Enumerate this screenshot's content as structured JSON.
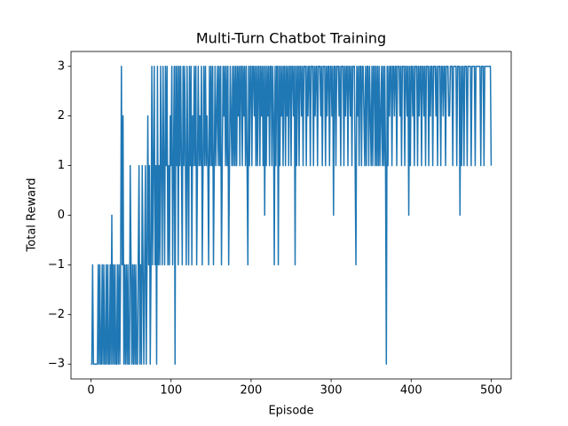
{
  "chart_data": {
    "type": "line",
    "title": "Multi-Turn Chatbot Training",
    "x_label": "Episode",
    "y_label": "Total Reward",
    "xlim": [
      -25,
      525
    ],
    "xticks": [
      0,
      100,
      200,
      300,
      400,
      500
    ],
    "ylim": [
      -3.3,
      3.3
    ],
    "yticks": [
      {
        "value": -3,
        "label": "−3"
      },
      {
        "value": -2,
        "label": "−2"
      },
      {
        "value": -1,
        "label": "−1"
      },
      0,
      1,
      2,
      3
    ],
    "series": [
      {
        "name": "Total Reward",
        "color": "#1f77b4",
        "values": [
          -3,
          -3,
          -1,
          -3,
          -3,
          -3,
          -3,
          -3,
          -3,
          -1,
          -3,
          -1,
          -3,
          -3,
          -1,
          -3,
          -1,
          -3,
          -3,
          -1,
          -3,
          -1,
          -3,
          -3,
          -1,
          -3,
          0,
          -3,
          -1,
          -3,
          -1,
          -3,
          -3,
          -1,
          -3,
          -1,
          -3,
          -1,
          3,
          -1,
          2,
          -3,
          -1,
          -3,
          -1,
          -3,
          -1,
          -3,
          -3,
          1,
          -1,
          -3,
          -1,
          -3,
          -1,
          -3,
          -1,
          -3,
          -3,
          -1,
          1,
          -3,
          -1,
          -3,
          1,
          -1,
          -3,
          -1,
          1,
          -3,
          -1,
          2,
          -1,
          1,
          -3,
          -1,
          3,
          -1,
          1,
          3,
          -1,
          1,
          -3,
          3,
          -1,
          1,
          -1,
          3,
          1,
          -1,
          3,
          1,
          -1,
          3,
          1,
          3,
          -1,
          1,
          -1,
          2,
          1,
          3,
          -1,
          1,
          3,
          -3,
          3,
          1,
          3,
          -1,
          3,
          1,
          3,
          1,
          -1,
          3,
          1,
          3,
          1,
          -1,
          3,
          1,
          -1,
          3,
          1,
          3,
          -1,
          2,
          1,
          3,
          1,
          3,
          -1,
          1,
          3,
          1,
          2,
          1,
          3,
          -1,
          1,
          3,
          1,
          3,
          1,
          2,
          1,
          -1,
          3,
          1,
          3,
          1,
          3,
          -1,
          1,
          3,
          1,
          2,
          3,
          1,
          3,
          1,
          3,
          -1,
          1,
          3,
          2,
          3,
          1,
          3,
          1,
          3,
          -1,
          1,
          3,
          2,
          1,
          3,
          1,
          3,
          1,
          3,
          1,
          3,
          2,
          3,
          1,
          3,
          3,
          1,
          3,
          2,
          3,
          1,
          3,
          1,
          -1,
          3,
          1,
          3,
          3,
          1,
          3,
          3,
          2,
          3,
          1,
          3,
          1,
          3,
          3,
          1,
          3,
          2,
          3,
          1,
          3,
          0,
          3,
          1,
          3,
          2,
          3,
          1,
          3,
          3,
          1,
          3,
          2,
          -1,
          3,
          1,
          3,
          3,
          -1,
          3,
          1,
          3,
          2,
          3,
          1,
          3,
          3,
          1,
          3,
          2,
          3,
          1,
          3,
          3,
          1,
          3,
          3,
          2,
          3,
          -1,
          3,
          1,
          3,
          3,
          1,
          3,
          3,
          2,
          3,
          1,
          3,
          3,
          3,
          1,
          3,
          2,
          3,
          3,
          1,
          3,
          3,
          3,
          1,
          3,
          2,
          3,
          3,
          1,
          3,
          3,
          3,
          2,
          3,
          1,
          3,
          3,
          3,
          1,
          3,
          2,
          3,
          3,
          1,
          3,
          3,
          2,
          3,
          0,
          3,
          3,
          1,
          3,
          3,
          3,
          2,
          3,
          1,
          3,
          3,
          3,
          1,
          3,
          2,
          3,
          3,
          1,
          3,
          3,
          2,
          3,
          1,
          3,
          3,
          3,
          1,
          -1,
          3,
          2,
          3,
          1,
          3,
          3,
          1,
          3,
          3,
          2,
          1,
          3,
          1,
          3,
          3,
          1,
          3,
          2,
          1,
          3,
          1,
          3,
          3,
          1,
          3,
          1,
          3,
          1,
          3,
          1,
          2,
          3,
          1,
          3,
          1,
          3,
          1,
          -3,
          3,
          1,
          3,
          2,
          3,
          3,
          1,
          3,
          3,
          2,
          3,
          3,
          1,
          3,
          3,
          3,
          2,
          3,
          1,
          3,
          3,
          3,
          1,
          3,
          3,
          2,
          3,
          0,
          3,
          1,
          3,
          3,
          2,
          3,
          1,
          3,
          3,
          3,
          1,
          3,
          2,
          3,
          3,
          1,
          3,
          3,
          2,
          3,
          1,
          3,
          3,
          3,
          1,
          3,
          2,
          3,
          3,
          1,
          3,
          3,
          3,
          2,
          3,
          1,
          3,
          3,
          3,
          1,
          3,
          3,
          2,
          3,
          3,
          1,
          3,
          3,
          3,
          2,
          2,
          3,
          3,
          3,
          1,
          3,
          3,
          3,
          3,
          1,
          3,
          3,
          3,
          0,
          3,
          1,
          3,
          3,
          1,
          3,
          3,
          3,
          1,
          3,
          3,
          3,
          3,
          1,
          3,
          3,
          3,
          3,
          1,
          3,
          3,
          3,
          3,
          3,
          3,
          1,
          3,
          3,
          3,
          1,
          3,
          3,
          3,
          3,
          3,
          3,
          3,
          3,
          1
        ]
      }
    ]
  }
}
